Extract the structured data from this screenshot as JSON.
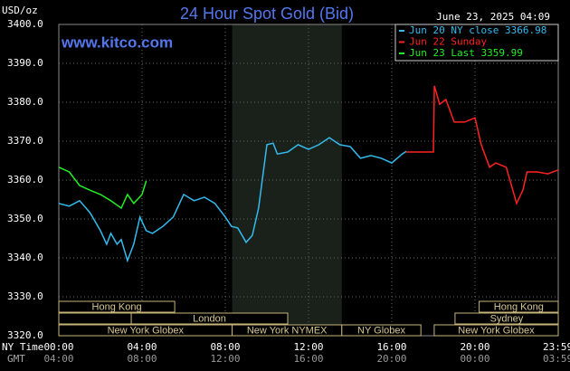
{
  "chart_data": {
    "type": "line",
    "title": "24 Hour Spot Gold (Bid)",
    "y_label": "USD/oz",
    "timestamp": "June 23, 2025 04:09",
    "site": "www.kitco.com",
    "x_label": "NY Time",
    "x2_label": "GMT",
    "xlim": [
      0,
      24
    ],
    "ylim": [
      3320,
      3400
    ],
    "xticks": [
      {
        "value": 0,
        "label": "00:00"
      },
      {
        "value": 4,
        "label": "04:00"
      },
      {
        "value": 8,
        "label": "08:00"
      },
      {
        "value": 12,
        "label": "12:00"
      },
      {
        "value": 16,
        "label": "16:00"
      },
      {
        "value": 20,
        "label": "20:00"
      },
      {
        "value": 23.98,
        "label": "23:59"
      }
    ],
    "x2ticks": [
      {
        "value": 0,
        "label": "04:00"
      },
      {
        "value": 4,
        "label": "08:00"
      },
      {
        "value": 8,
        "label": "12:00"
      },
      {
        "value": 12,
        "label": "16:00"
      },
      {
        "value": 16,
        "label": "20:00"
      },
      {
        "value": 20,
        "label": "00:00"
      },
      {
        "value": 23.98,
        "label": "03:59"
      }
    ],
    "yticks": [
      {
        "value": 3320,
        "label": "3320.0"
      },
      {
        "value": 3330,
        "label": "3330.0"
      },
      {
        "value": 3340,
        "label": "3340.0"
      },
      {
        "value": 3350,
        "label": "3350.0"
      },
      {
        "value": 3360,
        "label": "3360.0"
      },
      {
        "value": 3370,
        "label": "3370.0"
      },
      {
        "value": 3380,
        "label": "3380.0"
      },
      {
        "value": 3390,
        "label": "3390.0"
      },
      {
        "value": 3400,
        "label": "3400.0"
      }
    ],
    "grid": true,
    "highlight_range": [
      8.33,
      13.6
    ],
    "series": [
      {
        "name": "Jun 20 NY close 3366.98",
        "color": "#33bbee",
        "x": [
          0,
          0.5,
          1,
          1.5,
          2,
          2.3,
          2.5,
          2.8,
          3,
          3.3,
          3.6,
          3.9,
          4.2,
          4.5,
          5,
          5.5,
          6,
          6.5,
          7,
          7.5,
          8,
          8.3,
          8.6,
          9,
          9.3,
          9.6,
          10,
          10.3,
          10.5,
          11,
          11.5,
          12,
          12.5,
          13,
          13.5,
          14,
          14.5,
          15,
          15.5,
          16,
          16.5,
          16.7
        ],
        "values": [
          3354.0,
          3353.3,
          3354.7,
          3351.6,
          3347.0,
          3343.5,
          3346.3,
          3343.5,
          3344.7,
          3339.3,
          3343.5,
          3350.5,
          3347.0,
          3346.3,
          3348.1,
          3350.5,
          3356.3,
          3354.7,
          3355.6,
          3354.0,
          3350.5,
          3348.1,
          3347.7,
          3344.0,
          3345.8,
          3352.8,
          3369.1,
          3369.5,
          3366.7,
          3367.2,
          3369.1,
          3367.9,
          3369.1,
          3370.9,
          3369.1,
          3368.6,
          3365.6,
          3366.3,
          3365.6,
          3364.4,
          3366.7,
          3367.4
        ]
      },
      {
        "name": "Jun 22 Sunday",
        "color": "#ff2222",
        "x": [
          16.7,
          18,
          18.05,
          18.3,
          18.6,
          19,
          19.5,
          20,
          20.3,
          20.7,
          21,
          21.5,
          22,
          22.3,
          22.5,
          23,
          23.5,
          24
        ],
        "values": [
          3367.2,
          3367.2,
          3384.2,
          3379.5,
          3380.7,
          3374.9,
          3374.9,
          3376.0,
          3369.1,
          3363.3,
          3364.4,
          3363.3,
          3354.0,
          3357.4,
          3362.1,
          3362.1,
          3361.6,
          3362.6
        ]
      },
      {
        "name": "Jun 23 Last 3359.99",
        "color": "#22ee22",
        "x": [
          0,
          0.5,
          1,
          1.5,
          2,
          2.5,
          3,
          3.3,
          3.6,
          4,
          4.2
        ],
        "values": [
          3363.3,
          3362.1,
          3358.6,
          3357.4,
          3356.3,
          3354.7,
          3352.8,
          3356.3,
          3354.0,
          3356.3,
          3359.8
        ]
      }
    ],
    "sessions": [
      {
        "label": "Hong Kong",
        "start": 0,
        "end": 5.57
      },
      {
        "label": "Hong Kong",
        "start": 20.2,
        "end": 24
      },
      {
        "label": "London",
        "start": 3.48,
        "end": 11
      },
      {
        "label": "Sydney",
        "start": 19.04,
        "end": 24
      },
      {
        "label": "New York Globex",
        "start": 0,
        "end": 8.33
      },
      {
        "label": "New York NYMEX",
        "start": 8.33,
        "end": 13.6
      },
      {
        "label": "NY Globex",
        "start": 13.6,
        "end": 17.4
      },
      {
        "label": "New York Globex",
        "start": 18.04,
        "end": 24
      }
    ]
  }
}
